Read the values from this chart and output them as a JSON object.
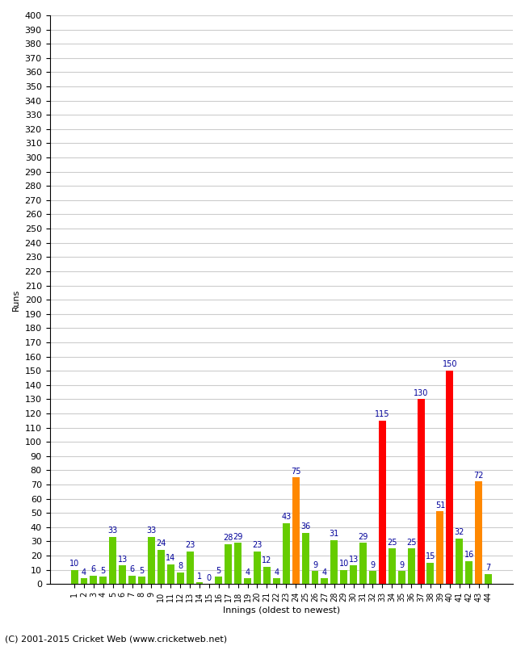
{
  "xlabel": "Innings (oldest to newest)",
  "ylabel": "Runs",
  "footer": "(C) 2001-2015 Cricket Web (www.cricketweb.net)",
  "ylim": [
    0,
    400
  ],
  "ytick_step": 10,
  "ytick_min": 0,
  "ytick_max": 400,
  "innings": [
    1,
    2,
    3,
    4,
    5,
    6,
    7,
    8,
    9,
    10,
    11,
    12,
    13,
    14,
    15,
    16,
    17,
    18,
    19,
    20,
    21,
    22,
    23,
    24,
    25,
    26,
    27,
    28,
    29,
    30,
    31,
    32,
    33,
    34,
    35,
    36,
    37,
    38,
    39,
    40,
    41,
    42,
    43,
    44
  ],
  "values": [
    10,
    4,
    6,
    5,
    33,
    13,
    6,
    5,
    33,
    24,
    14,
    8,
    23,
    1,
    0,
    5,
    28,
    29,
    4,
    23,
    12,
    4,
    43,
    75,
    36,
    9,
    4,
    31,
    10,
    13,
    29,
    9,
    115,
    25,
    9,
    25,
    130,
    15,
    51,
    150,
    32,
    16,
    72,
    7
  ],
  "colors": [
    "green",
    "green",
    "green",
    "green",
    "green",
    "green",
    "green",
    "green",
    "green",
    "green",
    "green",
    "green",
    "green",
    "green",
    "green",
    "green",
    "green",
    "green",
    "green",
    "green",
    "green",
    "green",
    "green",
    "orange",
    "green",
    "green",
    "green",
    "green",
    "green",
    "green",
    "green",
    "green",
    "red",
    "green",
    "green",
    "green",
    "red",
    "green",
    "orange",
    "red",
    "green",
    "green",
    "orange",
    "green"
  ],
  "color_map": {
    "green": "#66cc00",
    "orange": "#ff8800",
    "red": "#ff0000"
  },
  "bar_label_color": "#000099",
  "bar_label_fontsize": 7,
  "grid_color": "#cccccc",
  "ylabel_fontsize": 8,
  "xlabel_fontsize": 8,
  "ytick_fontsize": 8,
  "xtick_fontsize": 7,
  "footer_fontsize": 8
}
